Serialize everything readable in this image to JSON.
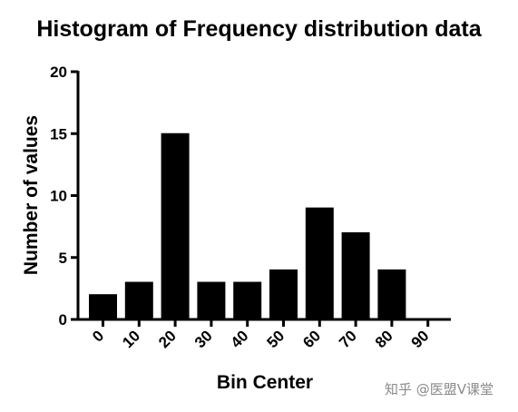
{
  "chart_data": {
    "type": "bar",
    "title": "Histogram of Frequency distribution data",
    "xlabel": "Bin Center",
    "ylabel": "Number of values",
    "categories": [
      "0",
      "10",
      "20",
      "30",
      "40",
      "50",
      "60",
      "70",
      "80",
      "90"
    ],
    "values": [
      2,
      3,
      15,
      3,
      3,
      4,
      9,
      7,
      4,
      0
    ],
    "ylim": [
      0,
      20
    ],
    "yticks": [
      0,
      5,
      10,
      15,
      20
    ],
    "grid": false,
    "legend": "none",
    "bar_color": "#000000"
  },
  "watermark": "知乎 @医盟V课堂"
}
